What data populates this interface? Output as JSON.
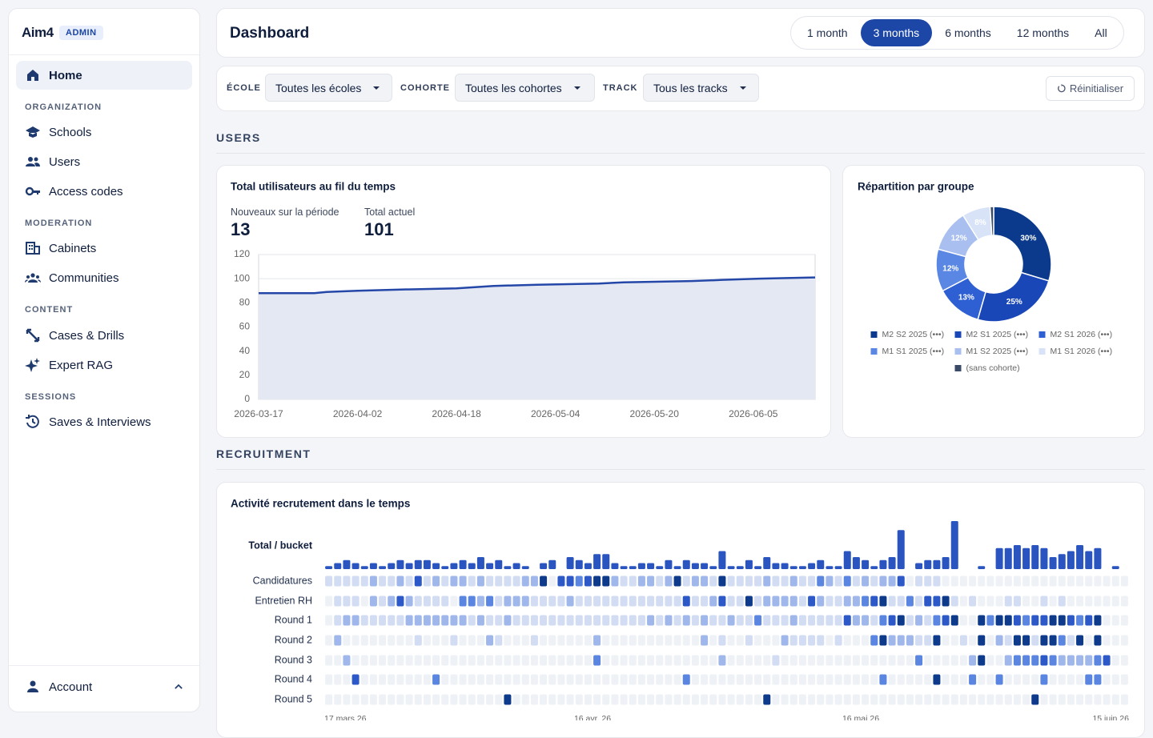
{
  "sidebar": {
    "logo": "Aim4",
    "badge": "ADMIN",
    "home": "Home",
    "sections": [
      {
        "title": "ORGANIZATION",
        "items": [
          "Schools",
          "Users",
          "Access codes"
        ]
      },
      {
        "title": "MODERATION",
        "items": [
          "Cabinets",
          "Communities"
        ]
      },
      {
        "title": "CONTENT",
        "items": [
          "Cases & Drills",
          "Expert RAG"
        ]
      },
      {
        "title": "SESSIONS",
        "items": [
          "Saves & Interviews"
        ]
      }
    ],
    "account": "Account"
  },
  "header": {
    "title": "Dashboard",
    "periods": [
      "1 month",
      "3 months",
      "6 months",
      "12 months",
      "All"
    ],
    "active_period": 1
  },
  "filters": {
    "items": [
      {
        "label": "ÉCOLE",
        "value": "Toutes les écoles"
      },
      {
        "label": "COHORTE",
        "value": "Toutes les cohortes"
      },
      {
        "label": "TRACK",
        "value": "Tous les tracks"
      }
    ],
    "reset": "Réinitialiser"
  },
  "sections": [
    "USERS",
    "RECRUITMENT"
  ],
  "chart_data": [
    {
      "type": "area",
      "title": "Total utilisateurs au fil du temps",
      "stats": [
        {
          "label": "Nouveaux sur la période",
          "value": 13
        },
        {
          "label": "Total actuel",
          "value": 101
        }
      ],
      "x": [
        "2026-03-17",
        "2026-03-26",
        "2026-03-28",
        "2026-04-02",
        "2026-04-09",
        "2026-04-18",
        "2026-04-24",
        "2026-05-01",
        "2026-05-11",
        "2026-05-15",
        "2026-05-26",
        "2026-05-31",
        "2026-06-06",
        "2026-06-15"
      ],
      "values": [
        88,
        88,
        89,
        90,
        91,
        92,
        94,
        95,
        96,
        97,
        98,
        99,
        100,
        101
      ],
      "color": "#2447a8",
      "fill_color": "#e3e8f3",
      "xlim": [
        "2026-03-17",
        "2026-06-15"
      ],
      "xticks": [
        "2026-03-17",
        "2026-04-02",
        "2026-04-18",
        "2026-05-04",
        "2026-05-20",
        "2026-06-05"
      ],
      "ylim": [
        0,
        120
      ],
      "yticks": [
        0,
        20,
        40,
        60,
        80,
        100,
        120
      ],
      "grid": true
    },
    {
      "type": "donut",
      "title": "Répartition par groupe",
      "categories": [
        "M2 S2 2025 (•••)",
        "M2 S1 2025 (•••)",
        "M2 S1 2026 (•••)",
        "M1 S1 2025 (•••)",
        "M1 S2 2025 (•••)",
        "M1 S1 2026 (•••)",
        "(sans cohorte)"
      ],
      "values": [
        30,
        25,
        13,
        12,
        12,
        8,
        1
      ],
      "value_labels": [
        "30%",
        "25%",
        "13%",
        "12%",
        "12%",
        "8%",
        null
      ],
      "colors": [
        "#0b3a8c",
        "#1947b8",
        "#2e60d4",
        "#5a86e4",
        "#a8bff0",
        "#d8e3f8",
        "#3b4a66"
      ]
    },
    {
      "type": "heatmap",
      "title": "Activité recrutement dans le temps",
      "total": {
        "name": "Total / bucket",
        "color": "#2a55c0",
        "values": [
          1,
          2,
          3,
          2,
          1,
          2,
          1,
          2,
          3,
          2,
          3,
          3,
          2,
          1,
          2,
          3,
          2,
          4,
          2,
          3,
          1,
          2,
          1,
          0,
          2,
          3,
          0,
          4,
          3,
          2,
          5,
          5,
          2,
          1,
          1,
          2,
          2,
          1,
          3,
          1,
          3,
          2,
          2,
          1,
          6,
          1,
          1,
          3,
          1,
          4,
          2,
          2,
          1,
          1,
          2,
          3,
          1,
          1,
          6,
          4,
          3,
          1,
          3,
          4,
          13,
          0,
          2,
          3,
          3,
          4,
          16,
          0,
          0,
          1,
          0,
          7,
          7,
          8,
          7,
          8,
          7,
          4,
          5,
          6,
          8,
          6,
          7,
          0,
          1,
          0
        ]
      },
      "rows": [
        {
          "name": "Candidatures",
          "values": [
            1,
            1,
            1,
            1,
            1,
            2,
            1,
            1,
            2,
            1,
            4,
            1,
            2,
            1,
            2,
            2,
            1,
            2,
            1,
            1,
            1,
            1,
            2,
            2,
            5,
            0,
            4,
            4,
            3,
            4,
            5,
            5,
            2,
            1,
            1,
            2,
            2,
            1,
            2,
            5,
            1,
            2,
            2,
            1,
            5,
            1,
            1,
            1,
            1,
            2,
            1,
            1,
            2,
            1,
            1,
            3,
            2,
            1,
            3,
            1,
            2,
            1,
            2,
            2,
            4,
            0,
            1,
            1,
            1,
            0,
            0,
            0,
            0,
            0,
            0,
            0,
            0,
            0,
            0,
            0,
            0,
            0,
            0,
            0,
            0,
            0,
            0,
            0,
            0,
            0
          ]
        },
        {
          "name": "Entretien RH",
          "values": [
            0,
            1,
            1,
            1,
            0,
            2,
            1,
            2,
            4,
            2,
            1,
            1,
            1,
            1,
            0,
            3,
            3,
            2,
            3,
            1,
            2,
            2,
            2,
            1,
            1,
            1,
            1,
            2,
            1,
            1,
            1,
            1,
            1,
            1,
            1,
            1,
            1,
            1,
            1,
            1,
            4,
            1,
            1,
            2,
            4,
            1,
            1,
            5,
            1,
            2,
            2,
            2,
            2,
            1,
            4,
            2,
            1,
            1,
            2,
            2,
            3,
            4,
            5,
            1,
            1,
            3,
            1,
            4,
            4,
            5,
            1,
            0,
            1,
            0,
            0,
            0,
            1,
            1,
            0,
            0,
            1,
            0,
            1,
            0,
            0,
            0,
            0,
            0,
            0,
            0
          ]
        },
        {
          "name": "Round 1",
          "values": [
            0,
            1,
            2,
            2,
            1,
            1,
            1,
            1,
            1,
            2,
            2,
            2,
            2,
            2,
            2,
            2,
            1,
            2,
            1,
            1,
            2,
            1,
            1,
            1,
            1,
            1,
            1,
            1,
            1,
            1,
            1,
            1,
            1,
            1,
            1,
            1,
            2,
            1,
            2,
            1,
            2,
            1,
            2,
            1,
            1,
            2,
            1,
            1,
            3,
            1,
            1,
            1,
            2,
            1,
            1,
            1,
            1,
            1,
            4,
            2,
            2,
            1,
            3,
            4,
            5,
            1,
            2,
            1,
            3,
            4,
            5,
            0,
            0,
            5,
            3,
            5,
            5,
            4,
            3,
            4,
            4,
            5,
            5,
            4,
            3,
            4,
            5,
            0,
            0,
            0
          ]
        },
        {
          "name": "Round 2",
          "values": [
            0,
            2,
            0,
            0,
            0,
            0,
            0,
            0,
            0,
            0,
            1,
            0,
            0,
            0,
            1,
            0,
            0,
            0,
            2,
            1,
            0,
            0,
            0,
            1,
            0,
            0,
            0,
            0,
            0,
            0,
            2,
            0,
            0,
            0,
            0,
            0,
            0,
            0,
            0,
            0,
            0,
            0,
            2,
            0,
            1,
            0,
            0,
            1,
            0,
            0,
            0,
            2,
            1,
            1,
            1,
            1,
            0,
            1,
            0,
            0,
            0,
            3,
            5,
            2,
            2,
            2,
            1,
            1,
            5,
            0,
            0,
            1,
            0,
            5,
            0,
            2,
            1,
            5,
            5,
            1,
            5,
            5,
            3,
            1,
            5,
            0,
            5,
            0,
            0,
            0
          ]
        },
        {
          "name": "Round 3",
          "values": [
            0,
            0,
            2,
            0,
            0,
            0,
            0,
            0,
            0,
            0,
            0,
            0,
            0,
            0,
            0,
            0,
            0,
            0,
            0,
            0,
            0,
            0,
            0,
            0,
            0,
            0,
            0,
            0,
            0,
            0,
            3,
            0,
            0,
            0,
            0,
            0,
            0,
            0,
            0,
            0,
            0,
            0,
            0,
            0,
            2,
            0,
            0,
            0,
            0,
            0,
            1,
            0,
            0,
            0,
            0,
            0,
            0,
            0,
            0,
            0,
            0,
            0,
            0,
            0,
            0,
            0,
            3,
            0,
            0,
            0,
            0,
            0,
            2,
            5,
            0,
            0,
            2,
            3,
            3,
            3,
            4,
            3,
            2,
            2,
            2,
            2,
            3,
            4,
            0,
            0
          ]
        },
        {
          "name": "Round 4",
          "values": [
            0,
            0,
            0,
            4,
            0,
            0,
            0,
            0,
            0,
            0,
            0,
            0,
            3,
            0,
            0,
            0,
            0,
            0,
            0,
            0,
            0,
            0,
            0,
            0,
            0,
            0,
            0,
            0,
            0,
            0,
            0,
            0,
            0,
            0,
            0,
            0,
            0,
            0,
            0,
            0,
            3,
            0,
            0,
            0,
            0,
            0,
            0,
            0,
            0,
            0,
            0,
            0,
            0,
            0,
            0,
            0,
            0,
            0,
            0,
            0,
            0,
            0,
            3,
            0,
            0,
            0,
            0,
            0,
            5,
            0,
            0,
            0,
            3,
            0,
            0,
            3,
            0,
            0,
            0,
            0,
            3,
            0,
            0,
            0,
            0,
            3,
            3,
            0,
            0,
            0
          ]
        },
        {
          "name": "Round 5",
          "values": [
            0,
            0,
            0,
            0,
            0,
            0,
            0,
            0,
            0,
            0,
            0,
            0,
            0,
            0,
            0,
            0,
            0,
            0,
            0,
            0,
            5,
            0,
            0,
            0,
            0,
            0,
            0,
            0,
            0,
            0,
            0,
            0,
            0,
            0,
            0,
            0,
            0,
            0,
            0,
            0,
            0,
            0,
            0,
            0,
            0,
            0,
            0,
            0,
            0,
            5,
            0,
            0,
            0,
            0,
            0,
            0,
            0,
            0,
            0,
            0,
            0,
            0,
            0,
            0,
            0,
            0,
            0,
            0,
            0,
            0,
            0,
            0,
            0,
            0,
            0,
            0,
            0,
            0,
            0,
            5,
            0,
            0,
            0,
            0,
            0,
            0,
            0,
            0,
            0,
            0
          ]
        }
      ],
      "color_scale": [
        "#eef1f6",
        "#d2dcf2",
        "#9fb7ea",
        "#5a85e0",
        "#2c59c7",
        "#0d3a8a"
      ],
      "xlim": [
        0,
        90
      ],
      "xticks": [
        {
          "value": 0,
          "label": "17 mars 26"
        },
        {
          "value": 30,
          "label": "16 avr. 26"
        },
        {
          "value": 60,
          "label": "16 mai 26"
        },
        {
          "value": 90,
          "label": "15 juin 26"
        }
      ]
    }
  ]
}
